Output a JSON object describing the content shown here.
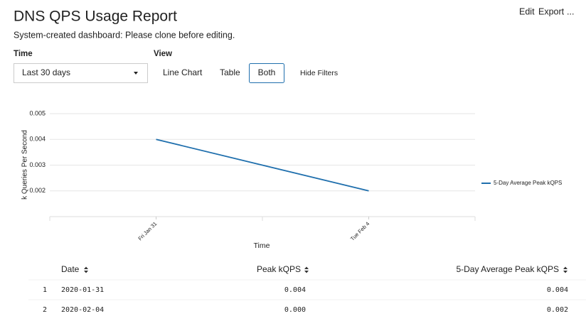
{
  "header": {
    "title": "DNS QPS Usage Report",
    "subtitle": "System-created dashboard: Please clone before editing.",
    "actions": [
      "Edit",
      "Export",
      "..."
    ]
  },
  "filters": {
    "time_label": "Time",
    "time_value": "Last 30 days",
    "view_label": "View",
    "view_options": [
      "Line Chart",
      "Table",
      "Both"
    ],
    "hide_filters": "Hide Filters"
  },
  "chart_data": {
    "type": "line",
    "x_label": "Time",
    "y_label": "k Queries Per Second",
    "categories": [
      "Fri Jan 31",
      "Tue Feb 4"
    ],
    "series": [
      {
        "name": "5-Day Average Peak kQPS",
        "color": "#1f6fad",
        "values": [
          0.004,
          0.002
        ]
      }
    ],
    "ylim": [
      0.001,
      0.005
    ],
    "yticks": [
      0.002,
      0.003,
      0.004,
      0.005
    ],
    "grid": true,
    "legend": "right"
  },
  "table": {
    "columns": [
      "Date",
      "Peak kQPS",
      "5-Day Average Peak kQPS"
    ],
    "rows": [
      [
        "1",
        "2020-01-31",
        "0.004",
        "0.004"
      ],
      [
        "2",
        "2020-02-04",
        "0.000",
        "0.002"
      ]
    ]
  }
}
